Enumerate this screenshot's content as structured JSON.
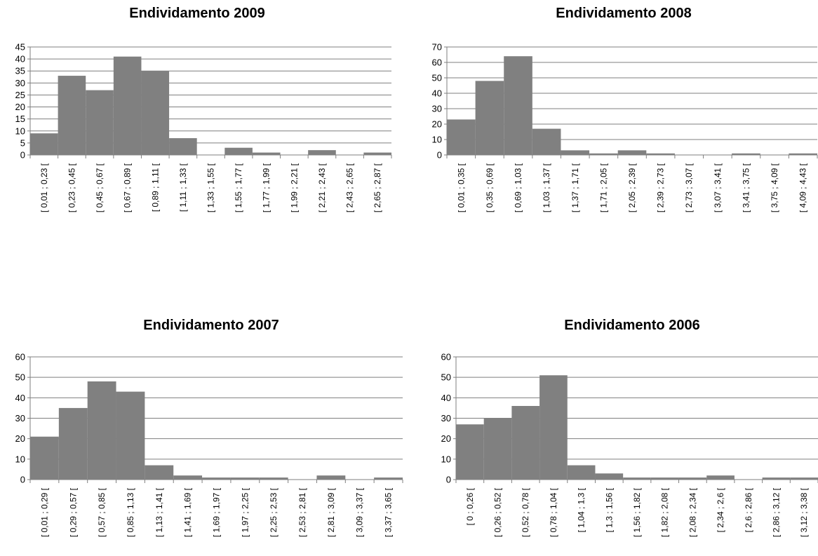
{
  "colors": {
    "bar": "#808080",
    "grid": "#7f7f7f"
  },
  "chart_data": [
    {
      "type": "bar",
      "title": "Endividamento 2009",
      "xlabel": "",
      "ylabel": "",
      "ylim": [
        0,
        45
      ],
      "yticks": [
        0,
        5,
        10,
        15,
        20,
        25,
        30,
        35,
        40,
        45
      ],
      "grid": true,
      "categories": [
        "[ 0,01 ; 0,23 [",
        "[ 0,23 ; 0,45 [",
        "[ 0,45 ; 0,67 [",
        "[ 0,67 ; 0,89 [",
        "[ 0,89 ; 1,11 [",
        "[ 1,11 ; 1,33 [",
        "[ 1,33 ; 1,55 [",
        "[ 1,55 ; 1,77 [",
        "[ 1,77 ; 1,99 [",
        "[ 1,99 ; 2,21 [",
        "[ 2,21 ; 2,43 [",
        "[ 2,43 ; 2,65 [",
        "[ 2,65 ; 2,87 ["
      ],
      "values": [
        9,
        33,
        27,
        41,
        35,
        7,
        0,
        3,
        1,
        0,
        2,
        0,
        1
      ]
    },
    {
      "type": "bar",
      "title": "Endividamento 2008",
      "xlabel": "",
      "ylabel": "",
      "ylim": [
        0,
        70
      ],
      "yticks": [
        0,
        10,
        20,
        30,
        40,
        50,
        60,
        70
      ],
      "grid": true,
      "categories": [
        "[ 0,01 ; 0,35 [",
        "[ 0,35 ; 0,69 [",
        "[ 0,69 ; 1,03 [",
        "[ 1,03 ; 1,37 [",
        "[ 1,37 ; 1,71 [",
        "[ 1,71 ; 2,05 [",
        "[ 2,05 ; 2,39 [",
        "[ 2,39 ; 2,73 [",
        "[ 2,73 ; 3,07 [",
        "[ 3,07 ; 3,41 [",
        "[ 3,41 ; 3,75 [",
        "[ 3,75 ; 4,09 [",
        "[ 4,09 ; 4,43 ["
      ],
      "values": [
        23,
        48,
        64,
        17,
        3,
        1,
        3,
        1,
        0,
        0,
        1,
        0,
        1
      ]
    },
    {
      "type": "bar",
      "title": "Endividamento 2007",
      "xlabel": "",
      "ylabel": "",
      "ylim": [
        0,
        60
      ],
      "yticks": [
        0,
        10,
        20,
        30,
        40,
        50,
        60
      ],
      "grid": true,
      "categories": [
        "[ 0,01 ; 0,29 [",
        "[ 0,29 ; 0,57 [",
        "[ 0,57 ; 0,85 [",
        "[ 0,85 ; 1,13 [",
        "[ 1,13 ; 1,41 [",
        "[ 1,41 ; 1,69 [",
        "[ 1,69 ; 1,97 [",
        "[ 1,97 ; 2,25 [",
        "[ 2,25 ; 2,53 [",
        "[ 2,53 ; 2,81 [",
        "[ 2,81 ; 3,09 [",
        "[ 3,09 ; 3,37 [",
        "[ 3,37 ; 3,65 ["
      ],
      "values": [
        21,
        35,
        48,
        43,
        7,
        2,
        1,
        1,
        1,
        0,
        2,
        0,
        1
      ]
    },
    {
      "type": "bar",
      "title": "Endividamento 2006",
      "xlabel": "",
      "ylabel": "",
      "ylim": [
        0,
        60
      ],
      "yticks": [
        0,
        10,
        20,
        30,
        40,
        50,
        60
      ],
      "grid": true,
      "categories": [
        "[ 0 ; 0,26 [",
        "[ 0,26 ; 0,52 [",
        "[ 0,52 ; 0,78 [",
        "[ 0,78 ; 1,04 [",
        "[ 1,04 ; 1,3 [",
        "[ 1,3 ; 1,56 [",
        "[ 1,56 ; 1,82 [",
        "[ 1,82 ; 2,08 [",
        "[ 2,08 ; 2,34 [",
        "[ 2,34 ; 2,6 [",
        "[ 2,6 ; 2,86 [",
        "[ 2,86 ; 3,12 [",
        "[ 3,12 ; 3,38 ["
      ],
      "values": [
        27,
        30,
        36,
        51,
        7,
        3,
        1,
        1,
        1,
        2,
        0,
        1,
        1
      ]
    }
  ]
}
